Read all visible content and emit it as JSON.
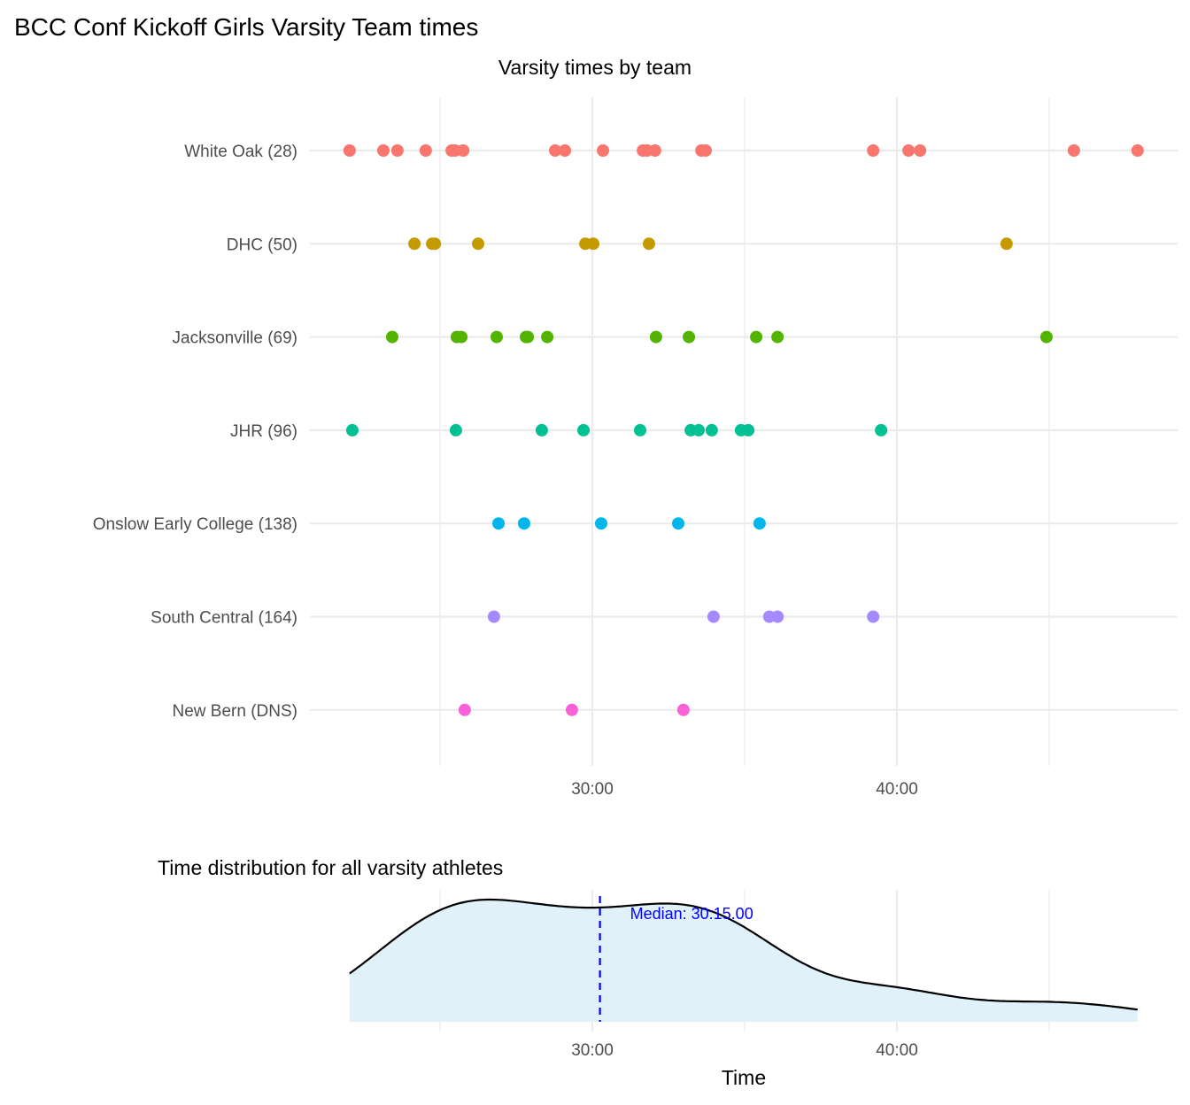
{
  "title": "BCC Conf Kickoff Girls Varsity Team times",
  "chart_data": [
    {
      "type": "scatter",
      "title": "Varsity times by team",
      "xlabel": "",
      "ylabel": "",
      "x_unit": "minutes",
      "xlim": [
        21,
        49
      ],
      "x_ticks": [
        {
          "value": 30,
          "label": "30:00"
        },
        {
          "value": 40,
          "label": "40:00"
        }
      ],
      "grid": true,
      "series": [
        {
          "name": "White Oak (28)",
          "color": "#F8766D",
          "values": [
            22.03,
            23.14,
            23.6,
            24.53,
            25.38,
            25.49,
            25.76,
            28.78,
            29.1,
            30.35,
            31.66,
            31.8,
            32.06,
            33.58,
            33.72,
            39.22,
            40.38,
            40.76,
            45.81,
            47.9
          ]
        },
        {
          "name": "DHC (50)",
          "color": "#C49A00",
          "values": [
            24.16,
            24.74,
            24.83,
            26.25,
            29.77,
            30.03,
            31.86,
            43.6
          ]
        },
        {
          "name": "Jacksonville (69)",
          "color": "#53B400",
          "values": [
            23.43,
            25.55,
            25.7,
            26.86,
            27.82,
            27.88,
            28.52,
            32.09,
            33.17,
            35.38,
            36.08,
            44.91
          ]
        },
        {
          "name": "JHR (96)",
          "color": "#00C094",
          "values": [
            22.12,
            25.52,
            28.34,
            29.71,
            31.57,
            33.23,
            33.49,
            33.92,
            34.88,
            35.12,
            39.48
          ]
        },
        {
          "name": "Onslow Early College (138)",
          "color": "#00B6EB",
          "values": [
            26.92,
            27.76,
            30.29,
            32.82,
            35.49
          ]
        },
        {
          "name": "South Central (164)",
          "color": "#A58AFF",
          "values": [
            26.77,
            33.98,
            35.81,
            36.08,
            39.22
          ]
        },
        {
          "name": "New Bern (DNS)",
          "color": "#FB61D7",
          "values": [
            25.81,
            29.33,
            32.99
          ]
        }
      ]
    },
    {
      "type": "area",
      "title": "Time distribution for all varsity athletes",
      "xlabel": "Time",
      "xlim": [
        21,
        49
      ],
      "x_ticks": [
        {
          "value": 30,
          "label": "30:00"
        },
        {
          "value": 40,
          "label": "40:00"
        }
      ],
      "fill": "#E0F1FA",
      "median": 30.25,
      "median_label": "Median: 30:15.00",
      "median_color": "#0000FF"
    }
  ]
}
